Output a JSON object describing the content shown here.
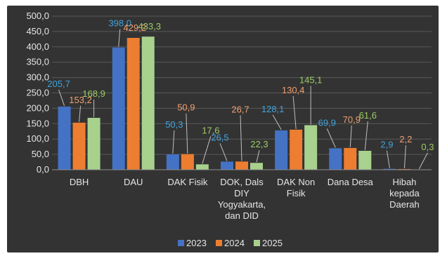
{
  "chart_data": {
    "type": "bar",
    "categories": [
      [
        "DBH"
      ],
      [
        "DAU"
      ],
      [
        "DAK Fisik"
      ],
      [
        "DOK, Dals",
        "DIY",
        "Yogyakarta,",
        "dan DID"
      ],
      [
        "DAK Non",
        "Fisik"
      ],
      [
        "Dana Desa"
      ],
      [
        "Hibah",
        "kepada",
        "Daerah"
      ]
    ],
    "series": [
      {
        "name": "2023",
        "color": "#4472c4",
        "label_color": "#3fa3dd",
        "values": [
          205.7,
          398.0,
          50.3,
          26.5,
          128.1,
          69.9,
          2.9
        ],
        "labels": [
          "205,7",
          "398,0",
          "50,3",
          "26,5",
          "128,1",
          "69,9",
          "2,9"
        ]
      },
      {
        "name": "2024",
        "color": "#ed7d31",
        "label_color": "#f0a070",
        "values": [
          153.2,
          429.2,
          50.9,
          26.7,
          130.4,
          70.9,
          2.2
        ],
        "labels": [
          "153,2",
          "429,2",
          "50,9",
          "26,7",
          "130,4",
          "70,9",
          "2,2"
        ]
      },
      {
        "name": "2025",
        "color": "#a9d18e",
        "label_color": "#9ccc65",
        "values": [
          168.9,
          433.3,
          17.6,
          22.3,
          145.1,
          61.6,
          0.3
        ],
        "labels": [
          "168,9",
          "433,3",
          "17,6",
          "22,3",
          "145,1",
          "61,6",
          "0,3"
        ]
      }
    ],
    "ylim": [
      0,
      500
    ],
    "yticks": [
      "0,0",
      "50,0",
      "100,0",
      "150,0",
      "200,0",
      "250,0",
      "300,0",
      "350,0",
      "400,0",
      "450,0",
      "500,0"
    ],
    "grid": true,
    "legend": "bottom"
  }
}
